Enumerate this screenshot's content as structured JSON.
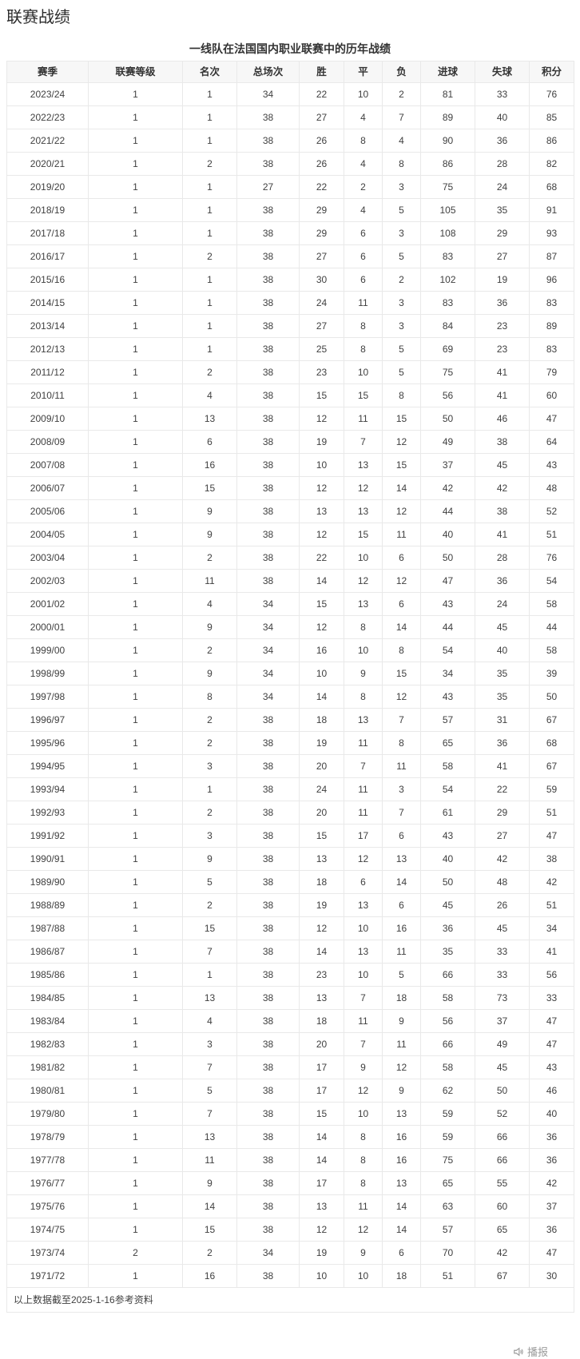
{
  "page": {
    "title": "联赛战绩"
  },
  "table": {
    "caption": "一线队在法国国内职业联赛中的历年战绩",
    "columns": [
      "赛季",
      "联赛等级",
      "名次",
      "总场次",
      "胜",
      "平",
      "负",
      "进球",
      "失球",
      "积分"
    ],
    "rows": [
      [
        "2023/24",
        "1",
        "1",
        "34",
        "22",
        "10",
        "2",
        "81",
        "33",
        "76"
      ],
      [
        "2022/23",
        "1",
        "1",
        "38",
        "27",
        "4",
        "7",
        "89",
        "40",
        "85"
      ],
      [
        "2021/22",
        "1",
        "1",
        "38",
        "26",
        "8",
        "4",
        "90",
        "36",
        "86"
      ],
      [
        "2020/21",
        "1",
        "2",
        "38",
        "26",
        "4",
        "8",
        "86",
        "28",
        "82"
      ],
      [
        "2019/20",
        "1",
        "1",
        "27",
        "22",
        "2",
        "3",
        "75",
        "24",
        "68"
      ],
      [
        "2018/19",
        "1",
        "1",
        "38",
        "29",
        "4",
        "5",
        "105",
        "35",
        "91"
      ],
      [
        "2017/18",
        "1",
        "1",
        "38",
        "29",
        "6",
        "3",
        "108",
        "29",
        "93"
      ],
      [
        "2016/17",
        "1",
        "2",
        "38",
        "27",
        "6",
        "5",
        "83",
        "27",
        "87"
      ],
      [
        "2015/16",
        "1",
        "1",
        "38",
        "30",
        "6",
        "2",
        "102",
        "19",
        "96"
      ],
      [
        "2014/15",
        "1",
        "1",
        "38",
        "24",
        "11",
        "3",
        "83",
        "36",
        "83"
      ],
      [
        "2013/14",
        "1",
        "1",
        "38",
        "27",
        "8",
        "3",
        "84",
        "23",
        "89"
      ],
      [
        "2012/13",
        "1",
        "1",
        "38",
        "25",
        "8",
        "5",
        "69",
        "23",
        "83"
      ],
      [
        "2011/12",
        "1",
        "2",
        "38",
        "23",
        "10",
        "5",
        "75",
        "41",
        "79"
      ],
      [
        "2010/11",
        "1",
        "4",
        "38",
        "15",
        "15",
        "8",
        "56",
        "41",
        "60"
      ],
      [
        "2009/10",
        "1",
        "13",
        "38",
        "12",
        "11",
        "15",
        "50",
        "46",
        "47"
      ],
      [
        "2008/09",
        "1",
        "6",
        "38",
        "19",
        "7",
        "12",
        "49",
        "38",
        "64"
      ],
      [
        "2007/08",
        "1",
        "16",
        "38",
        "10",
        "13",
        "15",
        "37",
        "45",
        "43"
      ],
      [
        "2006/07",
        "1",
        "15",
        "38",
        "12",
        "12",
        "14",
        "42",
        "42",
        "48"
      ],
      [
        "2005/06",
        "1",
        "9",
        "38",
        "13",
        "13",
        "12",
        "44",
        "38",
        "52"
      ],
      [
        "2004/05",
        "1",
        "9",
        "38",
        "12",
        "15",
        "11",
        "40",
        "41",
        "51"
      ],
      [
        "2003/04",
        "1",
        "2",
        "38",
        "22",
        "10",
        "6",
        "50",
        "28",
        "76"
      ],
      [
        "2002/03",
        "1",
        "11",
        "38",
        "14",
        "12",
        "12",
        "47",
        "36",
        "54"
      ],
      [
        "2001/02",
        "1",
        "4",
        "34",
        "15",
        "13",
        "6",
        "43",
        "24",
        "58"
      ],
      [
        "2000/01",
        "1",
        "9",
        "34",
        "12",
        "8",
        "14",
        "44",
        "45",
        "44"
      ],
      [
        "1999/00",
        "1",
        "2",
        "34",
        "16",
        "10",
        "8",
        "54",
        "40",
        "58"
      ],
      [
        "1998/99",
        "1",
        "9",
        "34",
        "10",
        "9",
        "15",
        "34",
        "35",
        "39"
      ],
      [
        "1997/98",
        "1",
        "8",
        "34",
        "14",
        "8",
        "12",
        "43",
        "35",
        "50"
      ],
      [
        "1996/97",
        "1",
        "2",
        "38",
        "18",
        "13",
        "7",
        "57",
        "31",
        "67"
      ],
      [
        "1995/96",
        "1",
        "2",
        "38",
        "19",
        "11",
        "8",
        "65",
        "36",
        "68"
      ],
      [
        "1994/95",
        "1",
        "3",
        "38",
        "20",
        "7",
        "11",
        "58",
        "41",
        "67"
      ],
      [
        "1993/94",
        "1",
        "1",
        "38",
        "24",
        "11",
        "3",
        "54",
        "22",
        "59"
      ],
      [
        "1992/93",
        "1",
        "2",
        "38",
        "20",
        "11",
        "7",
        "61",
        "29",
        "51"
      ],
      [
        "1991/92",
        "1",
        "3",
        "38",
        "15",
        "17",
        "6",
        "43",
        "27",
        "47"
      ],
      [
        "1990/91",
        "1",
        "9",
        "38",
        "13",
        "12",
        "13",
        "40",
        "42",
        "38"
      ],
      [
        "1989/90",
        "1",
        "5",
        "38",
        "18",
        "6",
        "14",
        "50",
        "48",
        "42"
      ],
      [
        "1988/89",
        "1",
        "2",
        "38",
        "19",
        "13",
        "6",
        "45",
        "26",
        "51"
      ],
      [
        "1987/88",
        "1",
        "15",
        "38",
        "12",
        "10",
        "16",
        "36",
        "45",
        "34"
      ],
      [
        "1986/87",
        "1",
        "7",
        "38",
        "14",
        "13",
        "11",
        "35",
        "33",
        "41"
      ],
      [
        "1985/86",
        "1",
        "1",
        "38",
        "23",
        "10",
        "5",
        "66",
        "33",
        "56"
      ],
      [
        "1984/85",
        "1",
        "13",
        "38",
        "13",
        "7",
        "18",
        "58",
        "73",
        "33"
      ],
      [
        "1983/84",
        "1",
        "4",
        "38",
        "18",
        "11",
        "9",
        "56",
        "37",
        "47"
      ],
      [
        "1982/83",
        "1",
        "3",
        "38",
        "20",
        "7",
        "11",
        "66",
        "49",
        "47"
      ],
      [
        "1981/82",
        "1",
        "7",
        "38",
        "17",
        "9",
        "12",
        "58",
        "45",
        "43"
      ],
      [
        "1980/81",
        "1",
        "5",
        "38",
        "17",
        "12",
        "9",
        "62",
        "50",
        "46"
      ],
      [
        "1979/80",
        "1",
        "7",
        "38",
        "15",
        "10",
        "13",
        "59",
        "52",
        "40"
      ],
      [
        "1978/79",
        "1",
        "13",
        "38",
        "14",
        "8",
        "16",
        "59",
        "66",
        "36"
      ],
      [
        "1977/78",
        "1",
        "11",
        "38",
        "14",
        "8",
        "16",
        "75",
        "66",
        "36"
      ],
      [
        "1976/77",
        "1",
        "9",
        "38",
        "17",
        "8",
        "13",
        "65",
        "55",
        "42"
      ],
      [
        "1975/76",
        "1",
        "14",
        "38",
        "13",
        "11",
        "14",
        "63",
        "60",
        "37"
      ],
      [
        "1974/75",
        "1",
        "15",
        "38",
        "12",
        "12",
        "14",
        "57",
        "65",
        "36"
      ],
      [
        "1973/74",
        "2",
        "2",
        "34",
        "19",
        "9",
        "6",
        "70",
        "42",
        "47"
      ],
      [
        "1971/72",
        "1",
        "16",
        "38",
        "10",
        "10",
        "18",
        "51",
        "67",
        "30"
      ]
    ],
    "footnote": "以上数据截至2025-1-16参考资料"
  },
  "footer": {
    "broadcast_label": "播报",
    "broadcast_icon": "speaker-icon"
  },
  "colors": {
    "header_bg": "#f7f7f7",
    "border": "#e9e9e9",
    "text": "#404040",
    "muted": "#9b9b9b"
  }
}
